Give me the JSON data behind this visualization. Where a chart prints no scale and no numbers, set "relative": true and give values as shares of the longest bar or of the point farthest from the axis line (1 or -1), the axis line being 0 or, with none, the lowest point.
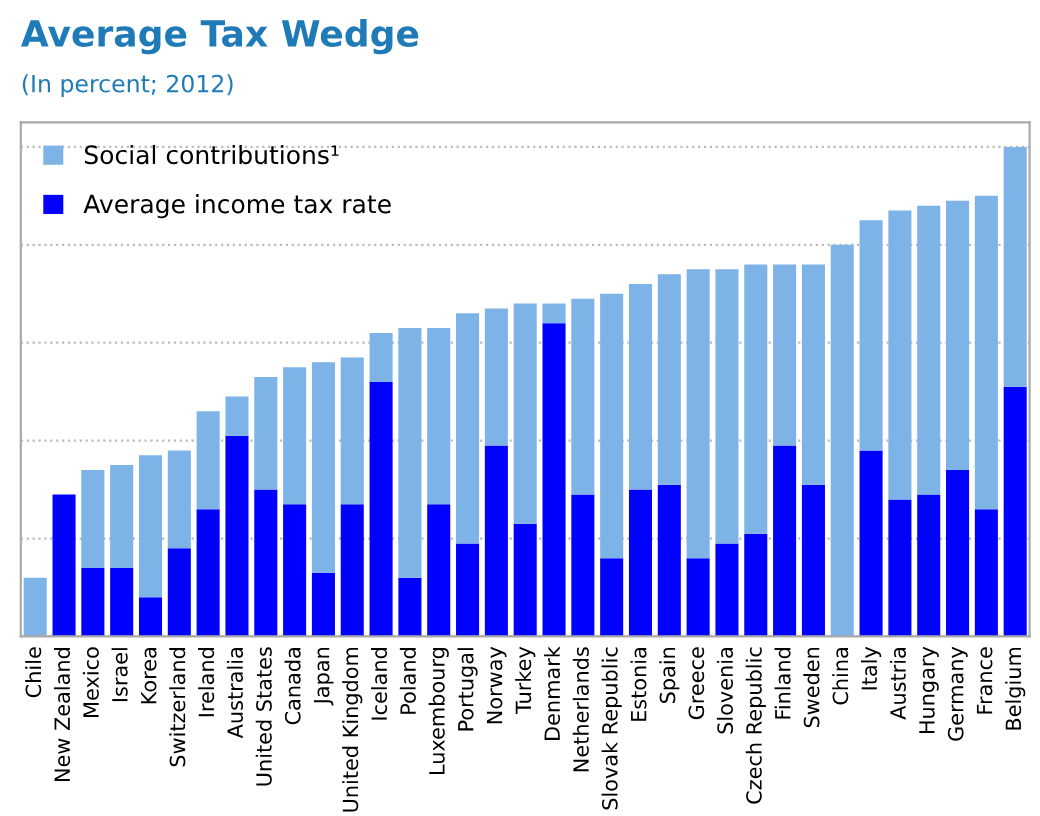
{
  "chart_data": {
    "type": "bar",
    "title": "Average Tax Wedge",
    "subtitle": "(In percent; 2012)",
    "categories": [
      "Chile",
      "New Zealand",
      "Mexico",
      "Israel",
      "Korea",
      "Switzerland",
      "Ireland",
      "Australia",
      "United States",
      "Canada",
      "Japan",
      "United Kingdom",
      "Iceland",
      "Poland",
      "Luxembourg",
      "Portugal",
      "Norway",
      "Turkey",
      "Denmark",
      "Netherlands",
      "Slovak Republic",
      "Estonia",
      "Spain",
      "Greece",
      "Slovenia",
      "Czech Republic",
      "Finland",
      "Sweden",
      "China",
      "Italy",
      "Austria",
      "Hungary",
      "Germany",
      "France",
      "Belgium"
    ],
    "stacked": true,
    "relative": true,
    "grid": "y",
    "legend": "top left",
    "series": [
      {
        "name": "Average income tax rate",
        "color": "#0000ff",
        "values": [
          0,
          0.29,
          0.14,
          0.14,
          0.08,
          0.18,
          0.26,
          0.41,
          0.3,
          0.27,
          0.13,
          0.27,
          0.52,
          0.12,
          0.27,
          0.19,
          0.39,
          0.23,
          0.64,
          0.29,
          0.16,
          0.3,
          0.31,
          0.16,
          0.19,
          0.21,
          0.39,
          0.31,
          0,
          0.38,
          0.28,
          0.29,
          0.34,
          0.26,
          0.51
        ]
      },
      {
        "name": "Social contributions¹",
        "color": "#7db3e6",
        "values": [
          0.12,
          0,
          0.2,
          0.21,
          0.29,
          0.2,
          0.2,
          0.08,
          0.23,
          0.28,
          0.43,
          0.3,
          0.1,
          0.51,
          0.36,
          0.47,
          0.28,
          0.45,
          0.04,
          0.4,
          0.54,
          0.42,
          0.43,
          0.59,
          0.56,
          0.55,
          0.37,
          0.45,
          0.8,
          0.47,
          0.59,
          0.59,
          0.55,
          0.64,
          0.49
        ]
      }
    ]
  }
}
